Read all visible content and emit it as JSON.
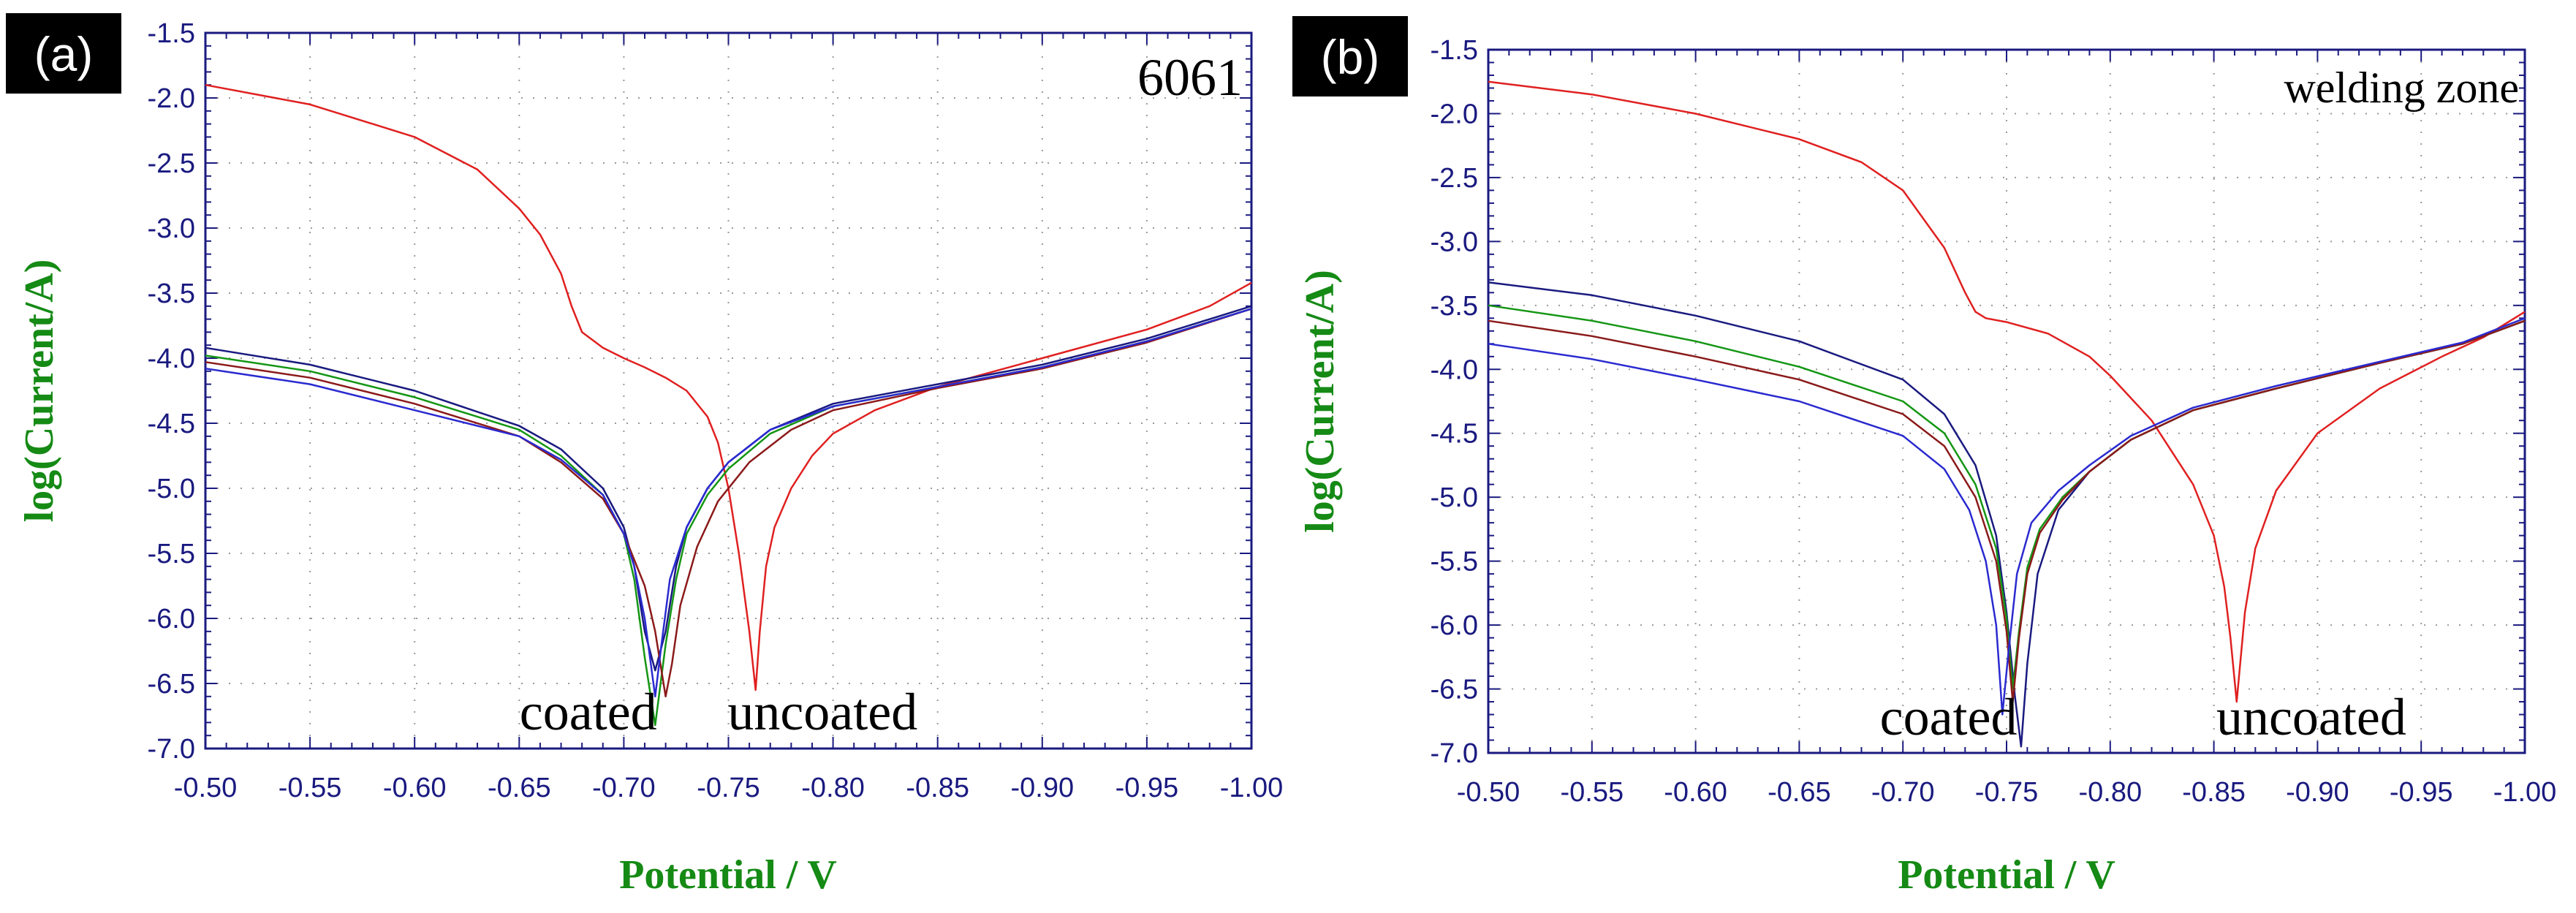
{
  "chart_data": [
    {
      "type": "line",
      "panel_label": "(a)",
      "title": "6061",
      "xlabel": "Potential / V",
      "ylabel": "log(Current/A)",
      "xlim": [
        -0.5,
        -1.0
      ],
      "ylim": [
        -7.0,
        -1.5
      ],
      "xticks": [
        -0.5,
        -0.55,
        -0.6,
        -0.65,
        -0.7,
        -0.75,
        -0.8,
        -0.85,
        -0.9,
        -0.95,
        -1.0
      ],
      "xtick_labels": [
        "-0.50",
        "-0.55",
        "-0.60",
        "-0.65",
        "-0.70",
        "-0.75",
        "-0.80",
        "-0.85",
        "-0.90",
        "-0.95",
        "-1.00"
      ],
      "yticks": [
        -1.5,
        -2.0,
        -2.5,
        -3.0,
        -3.5,
        -4.0,
        -4.5,
        -5.0,
        -5.5,
        -6.0,
        -6.5,
        -7.0
      ],
      "ytick_labels": [
        "-1.5",
        "-2.0",
        "-2.5",
        "-3.0",
        "-3.5",
        "-4.0",
        "-4.5",
        "-5.0",
        "-5.5",
        "-6.0",
        "-6.5",
        "-7.0"
      ],
      "grid": true,
      "annotations": [
        {
          "text": "coated",
          "x": -0.683,
          "y": -6.72
        },
        {
          "text": "uncoated",
          "x": -0.795,
          "y": -6.72
        }
      ],
      "series": [
        {
          "name": "uncoated",
          "color": "#e02020",
          "x": [
            -0.5,
            -0.55,
            -0.6,
            -0.63,
            -0.65,
            -0.66,
            -0.67,
            -0.675,
            -0.68,
            -0.69,
            -0.7,
            -0.71,
            -0.72,
            -0.73,
            -0.74,
            -0.745,
            -0.75,
            -0.755,
            -0.76,
            -0.763,
            -0.765,
            -0.768,
            -0.772,
            -0.78,
            -0.79,
            -0.8,
            -0.82,
            -0.85,
            -0.9,
            -0.95,
            -0.98,
            -1.0
          ],
          "y": [
            -1.9,
            -2.05,
            -2.3,
            -2.55,
            -2.85,
            -3.05,
            -3.35,
            -3.6,
            -3.8,
            -3.92,
            -4.0,
            -4.07,
            -4.15,
            -4.25,
            -4.45,
            -4.65,
            -5.0,
            -5.5,
            -6.1,
            -6.55,
            -6.1,
            -5.6,
            -5.3,
            -5.0,
            -4.75,
            -4.58,
            -4.4,
            -4.22,
            -4.0,
            -3.78,
            -3.6,
            -3.42
          ]
        },
        {
          "name": "coated-1",
          "color": "#1a1a80",
          "x": [
            -0.5,
            -0.55,
            -0.6,
            -0.65,
            -0.67,
            -0.69,
            -0.7,
            -0.705,
            -0.71,
            -0.715,
            -0.72,
            -0.725,
            -0.73,
            -0.74,
            -0.75,
            -0.77,
            -0.8,
            -0.85,
            -0.9,
            -0.95,
            -1.0
          ],
          "y": [
            -3.92,
            -4.05,
            -4.25,
            -4.52,
            -4.7,
            -5.0,
            -5.3,
            -5.6,
            -6.1,
            -6.4,
            -6.1,
            -5.6,
            -5.3,
            -5.0,
            -4.8,
            -4.55,
            -4.35,
            -4.2,
            -4.05,
            -3.85,
            -3.6
          ]
        },
        {
          "name": "coated-2",
          "color": "#149614",
          "x": [
            -0.5,
            -0.55,
            -0.6,
            -0.65,
            -0.67,
            -0.69,
            -0.7,
            -0.705,
            -0.71,
            -0.715,
            -0.72,
            -0.725,
            -0.73,
            -0.74,
            -0.75,
            -0.77,
            -0.8,
            -0.85,
            -0.9,
            -0.95,
            -1.0
          ],
          "y": [
            -3.98,
            -4.1,
            -4.3,
            -4.55,
            -4.75,
            -5.05,
            -5.35,
            -5.7,
            -6.3,
            -6.82,
            -6.2,
            -5.7,
            -5.35,
            -5.05,
            -4.85,
            -4.58,
            -4.37,
            -4.22,
            -4.07,
            -3.87,
            -3.62
          ]
        },
        {
          "name": "coated-3",
          "color": "#8b1a1a",
          "x": [
            -0.5,
            -0.55,
            -0.6,
            -0.65,
            -0.67,
            -0.69,
            -0.7,
            -0.71,
            -0.715,
            -0.72,
            -0.723,
            -0.727,
            -0.735,
            -0.745,
            -0.76,
            -0.78,
            -0.8,
            -0.85,
            -0.9,
            -0.95,
            -1.0
          ],
          "y": [
            -4.03,
            -4.15,
            -4.35,
            -4.6,
            -4.8,
            -5.08,
            -5.35,
            -5.75,
            -6.1,
            -6.6,
            -6.35,
            -5.9,
            -5.45,
            -5.1,
            -4.8,
            -4.55,
            -4.4,
            -4.23,
            -4.08,
            -3.88,
            -3.62
          ]
        },
        {
          "name": "coated-4",
          "color": "#2a2ad0",
          "x": [
            -0.5,
            -0.55,
            -0.6,
            -0.65,
            -0.67,
            -0.69,
            -0.7,
            -0.705,
            -0.71,
            -0.715,
            -0.718,
            -0.722,
            -0.73,
            -0.74,
            -0.75,
            -0.77,
            -0.8,
            -0.85,
            -0.9,
            -0.95,
            -1.0
          ],
          "y": [
            -4.08,
            -4.2,
            -4.4,
            -4.6,
            -4.78,
            -5.05,
            -5.35,
            -5.6,
            -6.0,
            -6.6,
            -6.2,
            -5.7,
            -5.3,
            -5.0,
            -4.8,
            -4.55,
            -4.37,
            -4.22,
            -4.07,
            -3.87,
            -3.62
          ]
        }
      ]
    },
    {
      "type": "line",
      "panel_label": "(b)",
      "title": "welding zone",
      "xlabel": "Potential / V",
      "ylabel": "log(Current/A)",
      "xlim": [
        -0.5,
        -1.0
      ],
      "ylim": [
        -7.0,
        -1.5
      ],
      "xticks": [
        -0.5,
        -0.55,
        -0.6,
        -0.65,
        -0.7,
        -0.75,
        -0.8,
        -0.85,
        -0.9,
        -0.95,
        -1.0
      ],
      "xtick_labels": [
        "-0.50",
        "-0.55",
        "-0.60",
        "-0.65",
        "-0.70",
        "-0.75",
        "-0.80",
        "-0.85",
        "-0.90",
        "-0.95",
        "-1.00"
      ],
      "yticks": [
        -1.5,
        -2.0,
        -2.5,
        -3.0,
        -3.5,
        -4.0,
        -4.5,
        -5.0,
        -5.5,
        -6.0,
        -6.5,
        -7.0
      ],
      "ytick_labels": [
        "-1.5",
        "-2.0",
        "-2.5",
        "-3.0",
        "-3.5",
        "-4.0",
        "-4.5",
        "-5.0",
        "-5.5",
        "-6.0",
        "-6.5",
        "-7.0"
      ],
      "grid": true,
      "annotations": [
        {
          "text": "coated",
          "x": -0.722,
          "y": -6.72
        },
        {
          "text": "uncoated",
          "x": -0.897,
          "y": -6.72
        }
      ],
      "series": [
        {
          "name": "uncoated",
          "color": "#e02020",
          "x": [
            -0.5,
            -0.55,
            -0.6,
            -0.65,
            -0.68,
            -0.7,
            -0.72,
            -0.73,
            -0.735,
            -0.74,
            -0.75,
            -0.77,
            -0.79,
            -0.8,
            -0.82,
            -0.84,
            -0.85,
            -0.855,
            -0.858,
            -0.861,
            -0.865,
            -0.87,
            -0.88,
            -0.9,
            -0.93,
            -0.96,
            -0.98,
            -1.0
          ],
          "y": [
            -1.75,
            -1.85,
            -2.0,
            -2.2,
            -2.38,
            -2.6,
            -3.05,
            -3.4,
            -3.55,
            -3.6,
            -3.63,
            -3.72,
            -3.9,
            -4.05,
            -4.4,
            -4.9,
            -5.3,
            -5.7,
            -6.1,
            -6.6,
            -5.9,
            -5.4,
            -4.95,
            -4.5,
            -4.15,
            -3.9,
            -3.75,
            -3.55
          ]
        },
        {
          "name": "coated-1",
          "color": "#1a1a80",
          "x": [
            -0.5,
            -0.55,
            -0.6,
            -0.65,
            -0.7,
            -0.72,
            -0.735,
            -0.745,
            -0.75,
            -0.754,
            -0.757,
            -0.76,
            -0.765,
            -0.775,
            -0.79,
            -0.81,
            -0.84,
            -0.88,
            -0.93,
            -0.97,
            -1.0
          ],
          "y": [
            -3.32,
            -3.42,
            -3.58,
            -3.78,
            -4.08,
            -4.35,
            -4.75,
            -5.3,
            -5.9,
            -6.55,
            -6.95,
            -6.3,
            -5.6,
            -5.1,
            -4.8,
            -4.55,
            -4.32,
            -4.15,
            -3.95,
            -3.8,
            -3.62
          ]
        },
        {
          "name": "coated-2",
          "color": "#149614",
          "x": [
            -0.5,
            -0.55,
            -0.6,
            -0.65,
            -0.7,
            -0.72,
            -0.735,
            -0.745,
            -0.75,
            -0.753,
            -0.756,
            -0.76,
            -0.766,
            -0.777,
            -0.79,
            -0.81,
            -0.84,
            -0.88,
            -0.93,
            -0.97,
            -1.0
          ],
          "y": [
            -3.5,
            -3.62,
            -3.78,
            -3.98,
            -4.25,
            -4.5,
            -4.9,
            -5.4,
            -5.95,
            -6.5,
            -6.05,
            -5.55,
            -5.25,
            -5.0,
            -4.8,
            -4.55,
            -4.32,
            -4.15,
            -3.95,
            -3.8,
            -3.62
          ]
        },
        {
          "name": "coated-3",
          "color": "#8b1a1a",
          "x": [
            -0.5,
            -0.55,
            -0.6,
            -0.65,
            -0.7,
            -0.72,
            -0.735,
            -0.745,
            -0.75,
            -0.753,
            -0.756,
            -0.76,
            -0.766,
            -0.777,
            -0.79,
            -0.81,
            -0.84,
            -0.88,
            -0.93,
            -0.97,
            -1.0
          ],
          "y": [
            -3.62,
            -3.74,
            -3.9,
            -4.08,
            -4.35,
            -4.6,
            -5.0,
            -5.5,
            -6.05,
            -6.6,
            -6.1,
            -5.6,
            -5.28,
            -5.02,
            -4.8,
            -4.55,
            -4.32,
            -4.15,
            -3.95,
            -3.8,
            -3.62
          ]
        },
        {
          "name": "coated-4",
          "color": "#2a2ad0",
          "x": [
            -0.5,
            -0.55,
            -0.6,
            -0.65,
            -0.7,
            -0.72,
            -0.732,
            -0.74,
            -0.745,
            -0.748,
            -0.751,
            -0.755,
            -0.762,
            -0.775,
            -0.79,
            -0.81,
            -0.84,
            -0.88,
            -0.93,
            -0.97,
            -1.0
          ],
          "y": [
            -3.8,
            -3.92,
            -4.08,
            -4.25,
            -4.52,
            -4.78,
            -5.1,
            -5.5,
            -6.0,
            -6.7,
            -6.2,
            -5.6,
            -5.2,
            -4.95,
            -4.75,
            -4.52,
            -4.3,
            -4.13,
            -3.94,
            -3.79,
            -3.6
          ]
        }
      ]
    }
  ]
}
